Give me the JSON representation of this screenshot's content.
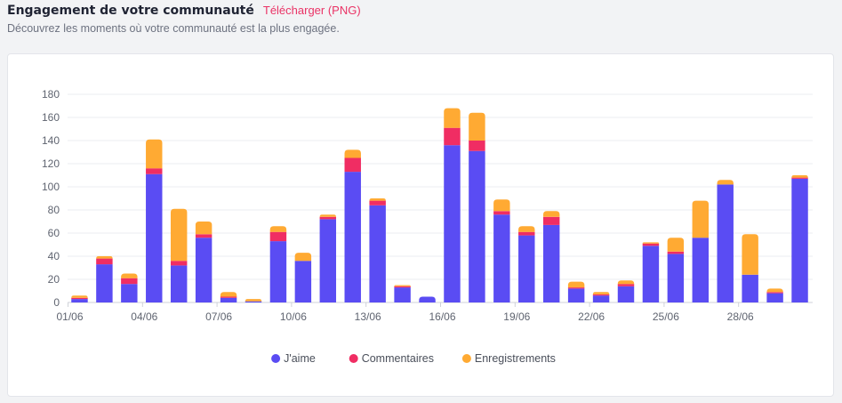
{
  "header": {
    "title": "Engagement de votre communauté",
    "download_label": "Télécharger (PNG)",
    "subtitle": "Découvrez les moments où votre communauté est la plus engagée."
  },
  "colors": {
    "likes": "#5a4cf3",
    "comments": "#f02d63",
    "saves": "#ffaa33",
    "accent": "#ea3366"
  },
  "chart_data": {
    "type": "bar",
    "stacked": true,
    "categories": [
      "01/06",
      "02/06",
      "03/06",
      "04/06",
      "05/06",
      "06/06",
      "07/06",
      "08/06",
      "09/06",
      "10/06",
      "11/06",
      "12/06",
      "13/06",
      "14/06",
      "15/06",
      "16/06",
      "17/06",
      "18/06",
      "19/06",
      "20/06",
      "21/06",
      "22/06",
      "23/06",
      "24/06",
      "25/06",
      "26/06",
      "27/06",
      "28/06",
      "29/06",
      "30/06"
    ],
    "tick_labels": [
      "01/06",
      "04/06",
      "07/06",
      "10/06",
      "13/06",
      "16/06",
      "19/06",
      "22/06",
      "25/06",
      "28/06"
    ],
    "series": [
      {
        "name": "J'aime",
        "color": "#5a4cf3",
        "values": [
          3,
          33,
          16,
          111,
          32,
          56,
          4,
          1,
          53,
          36,
          72,
          113,
          84,
          13,
          5,
          136,
          131,
          76,
          58,
          67,
          12,
          6,
          14,
          49,
          42,
          56,
          102,
          24,
          8,
          107
        ]
      },
      {
        "name": "Commentaires",
        "color": "#f02d63",
        "values": [
          1,
          5,
          5,
          5,
          4,
          3,
          1,
          0,
          8,
          0,
          2,
          12,
          4,
          1,
          0,
          15,
          9,
          3,
          3,
          7,
          1,
          1,
          2,
          2,
          2,
          0,
          0,
          0,
          1,
          1
        ]
      },
      {
        "name": "Enregistrements",
        "color": "#ffaa33",
        "values": [
          2,
          2,
          4,
          25,
          45,
          11,
          4,
          2,
          5,
          7,
          2,
          7,
          2,
          1,
          0,
          17,
          24,
          10,
          5,
          5,
          5,
          2,
          3,
          1,
          12,
          32,
          4,
          35,
          3,
          2
        ]
      }
    ],
    "y_ticks": [
      0,
      20,
      40,
      60,
      80,
      100,
      120,
      140,
      160,
      180
    ],
    "ylim": [
      0,
      180
    ],
    "grid": true,
    "legend_position": "bottom"
  }
}
